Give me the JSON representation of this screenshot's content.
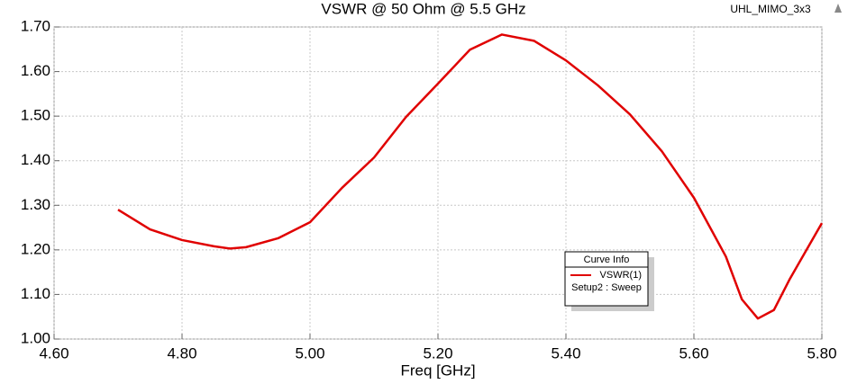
{
  "chart_data": {
    "type": "line",
    "title": "VSWR @ 50 Ohm @ 5.5 GHz",
    "project": "UHL_MIMO_3x3",
    "x_label": "Freq [GHz]",
    "x": [
      4.7,
      4.75,
      4.8,
      4.85,
      4.875,
      4.9,
      4.95,
      5.0,
      5.05,
      5.1,
      5.15,
      5.2,
      5.25,
      5.3,
      5.35,
      5.4,
      5.45,
      5.5,
      5.55,
      5.6,
      5.65,
      5.675,
      5.7,
      5.725,
      5.75,
      5.8
    ],
    "series": [
      {
        "name": "VSWR(1)",
        "color": "#e00000",
        "values": [
          1.29,
          1.246,
          1.222,
          1.208,
          1.203,
          1.206,
          1.226,
          1.262,
          1.339,
          1.407,
          1.498,
          1.573,
          1.649,
          1.683,
          1.669,
          1.625,
          1.569,
          1.504,
          1.421,
          1.317,
          1.185,
          1.089,
          1.046,
          1.065,
          1.135,
          1.26
        ]
      }
    ],
    "legend_title": "Curve Info",
    "legend_subtitle": "Setup2 : Sweep",
    "xlim": [
      4.6,
      5.8
    ],
    "xticks": [
      {
        "value": 4.6,
        "label": "4.60"
      },
      {
        "value": 4.8,
        "label": "4.80"
      },
      {
        "value": 5.0,
        "label": "5.00"
      },
      {
        "value": 5.2,
        "label": "5.20"
      },
      {
        "value": 5.4,
        "label": "5.40"
      },
      {
        "value": 5.6,
        "label": "5.60"
      },
      {
        "value": 5.8,
        "label": "5.80"
      }
    ],
    "ylim": [
      1.0,
      1.7
    ],
    "yticks": [
      {
        "value": 1.0,
        "label": "1.00"
      },
      {
        "value": 1.1,
        "label": "1.10"
      },
      {
        "value": 1.2,
        "label": "1.20"
      },
      {
        "value": 1.3,
        "label": "1.30"
      },
      {
        "value": 1.4,
        "label": "1.40"
      },
      {
        "value": 1.5,
        "label": "1.50"
      },
      {
        "value": 1.6,
        "label": "1.60"
      },
      {
        "value": 1.7,
        "label": "1.70"
      }
    ],
    "grid": true
  }
}
